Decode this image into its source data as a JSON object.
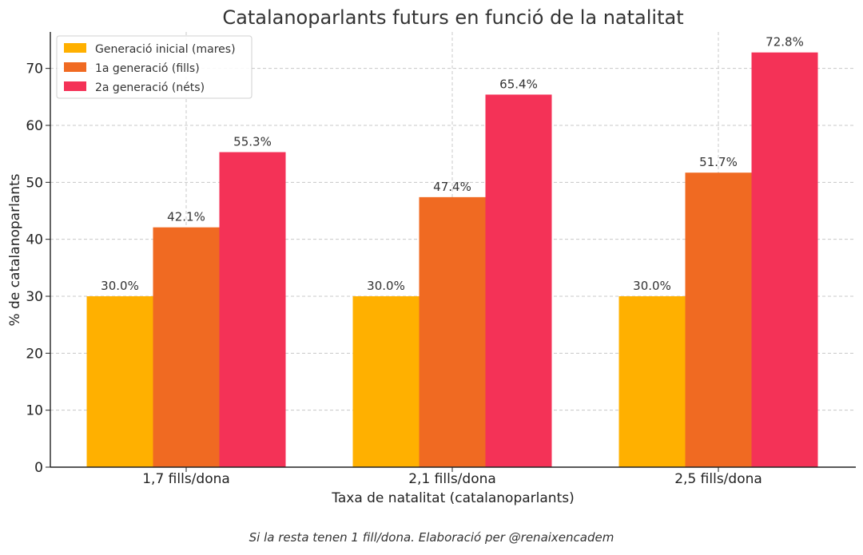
{
  "chart_data": {
    "type": "bar",
    "title": "Catalanoparlants futurs en funció de la natalitat",
    "xlabel": "Taxa de natalitat (catalanoparlants)",
    "ylabel": "% de catalanoparlants",
    "categories": [
      "1,7 fills/dona",
      "2,1 fills/dona",
      "2,5 fills/dona"
    ],
    "series": [
      {
        "name": "Generació inicial (mares)",
        "color": "#FFB000",
        "values": [
          30.0,
          30.0,
          30.0
        ],
        "labels": [
          "30.0%",
          "30.0%",
          "30.0%"
        ]
      },
      {
        "name": "1a generació (fills)",
        "color": "#F06A22",
        "values": [
          42.1,
          47.4,
          51.7
        ],
        "labels": [
          "42.1%",
          "47.4%",
          "51.7%"
        ]
      },
      {
        "name": "2a generació (néts)",
        "color": "#F43257",
        "values": [
          55.3,
          65.4,
          72.8
        ],
        "labels": [
          "55.3%",
          "65.4%",
          "72.8%"
        ]
      }
    ],
    "ylim": [
      0,
      76.4
    ],
    "yticks": [
      0,
      10,
      20,
      30,
      40,
      50,
      60,
      70
    ],
    "grid": true,
    "legend_position": "top-left"
  },
  "caption": "Si la resta tenen 1 fill/dona. Elaboració per @renaixencadem"
}
